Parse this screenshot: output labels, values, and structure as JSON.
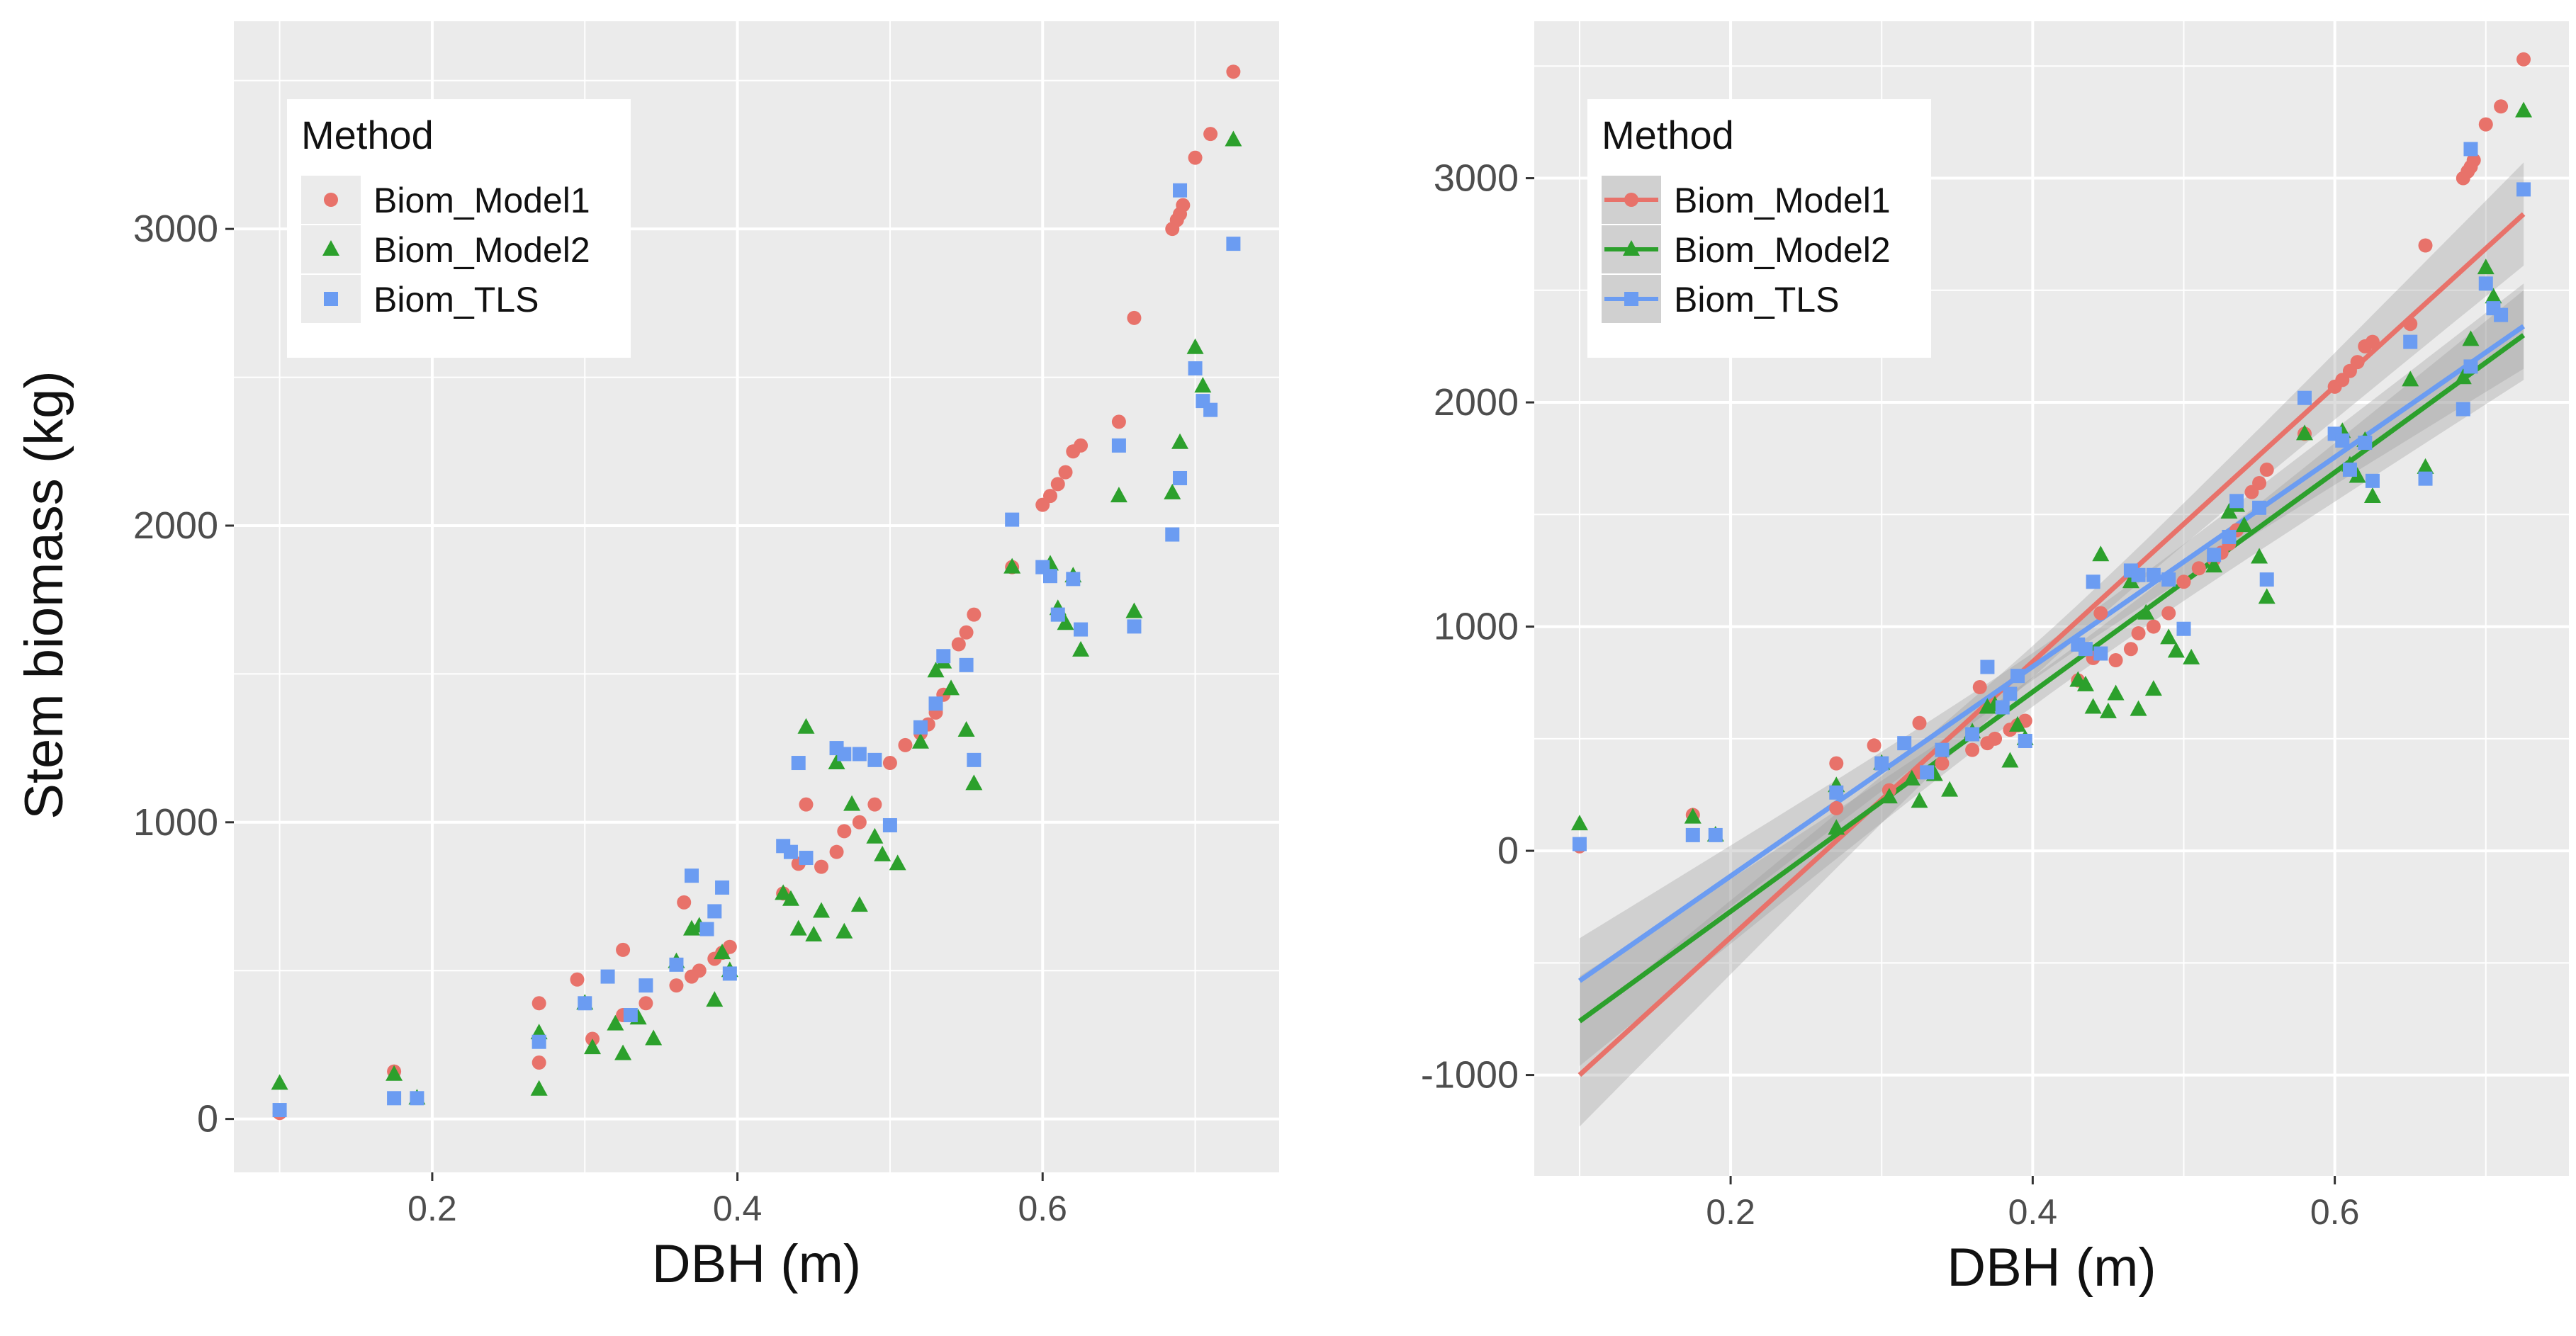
{
  "figure": {
    "ylabel": "Stem biomass (kg)",
    "panels_xlabel": "DBH (m)"
  },
  "colors": {
    "Biom_Model1": "#E8726A",
    "Biom_Model2": "#2CA02C",
    "Biom_TLS": "#6B9CF2",
    "panel_bg": "#EBEBEB",
    "grid": "#FFFFFF",
    "ribbon": "#9E9E9E"
  },
  "chart_data": [
    {
      "type": "scatter",
      "title": "",
      "xlabel": "DBH (m)",
      "ylabel": "Stem biomass (kg)",
      "xlim": [
        0.07,
        0.755
      ],
      "ylim": [
        -180,
        3700
      ],
      "xticks": [
        0.2,
        0.4,
        0.6
      ],
      "xtick_labels": [
        "0.2",
        "0.4",
        "0.6"
      ],
      "yticks": [
        0,
        1000,
        2000,
        3000
      ],
      "ytick_labels": [
        "0",
        "1000",
        "2000",
        "3000"
      ],
      "legend": {
        "title": "Method",
        "position": "top-left",
        "entries": [
          "Biom_Model1",
          "Biom_Model2",
          "Biom_TLS"
        ]
      },
      "series": [
        {
          "name": "Biom_Model1",
          "marker": "circle",
          "x": [
            0.1,
            0.175,
            0.27,
            0.27,
            0.295,
            0.305,
            0.325,
            0.325,
            0.34,
            0.36,
            0.365,
            0.37,
            0.375,
            0.385,
            0.39,
            0.395,
            0.43,
            0.44,
            0.445,
            0.455,
            0.465,
            0.47,
            0.48,
            0.49,
            0.5,
            0.51,
            0.52,
            0.525,
            0.53,
            0.535,
            0.545,
            0.55,
            0.555,
            0.58,
            0.6,
            0.605,
            0.61,
            0.615,
            0.62,
            0.625,
            0.65,
            0.66,
            0.685,
            0.688,
            0.69,
            0.692,
            0.7,
            0.71,
            0.725
          ],
          "y": [
            20,
            160,
            390,
            190,
            470,
            270,
            570,
            350,
            390,
            450,
            730,
            480,
            500,
            540,
            560,
            580,
            760,
            860,
            1060,
            850,
            900,
            970,
            1000,
            1060,
            1200,
            1260,
            1300,
            1330,
            1370,
            1430,
            1600,
            1640,
            1700,
            1860,
            2070,
            2100,
            2140,
            2180,
            2250,
            2270,
            2350,
            2700,
            3000,
            3030,
            3050,
            3080,
            3240,
            3320,
            3530
          ]
        },
        {
          "name": "Biom_Model2",
          "marker": "triangle",
          "x": [
            0.1,
            0.175,
            0.19,
            0.27,
            0.27,
            0.3,
            0.305,
            0.32,
            0.325,
            0.335,
            0.345,
            0.36,
            0.37,
            0.375,
            0.385,
            0.39,
            0.395,
            0.43,
            0.435,
            0.44,
            0.445,
            0.45,
            0.455,
            0.465,
            0.47,
            0.475,
            0.48,
            0.49,
            0.495,
            0.505,
            0.52,
            0.53,
            0.535,
            0.54,
            0.55,
            0.555,
            0.58,
            0.605,
            0.61,
            0.615,
            0.62,
            0.625,
            0.65,
            0.66,
            0.685,
            0.69,
            0.7,
            0.705,
            0.725
          ],
          "y": [
            120,
            150,
            70,
            100,
            290,
            390,
            240,
            320,
            220,
            340,
            270,
            530,
            640,
            650,
            400,
            560,
            500,
            760,
            740,
            640,
            1320,
            620,
            700,
            1200,
            630,
            1060,
            720,
            950,
            890,
            860,
            1270,
            1510,
            1540,
            1450,
            1310,
            1130,
            1860,
            1870,
            1720,
            1670,
            1830,
            1580,
            2100,
            1710,
            2110,
            2280,
            2600,
            2470,
            3300
          ]
        },
        {
          "name": "Biom_TLS",
          "marker": "square",
          "x": [
            0.1,
            0.175,
            0.19,
            0.27,
            0.3,
            0.315,
            0.33,
            0.34,
            0.36,
            0.37,
            0.38,
            0.385,
            0.39,
            0.395,
            0.43,
            0.435,
            0.44,
            0.445,
            0.465,
            0.47,
            0.48,
            0.49,
            0.5,
            0.52,
            0.53,
            0.535,
            0.55,
            0.555,
            0.58,
            0.6,
            0.605,
            0.61,
            0.62,
            0.625,
            0.65,
            0.66,
            0.685,
            0.69,
            0.69,
            0.7,
            0.705,
            0.71,
            0.725
          ],
          "y": [
            30,
            70,
            70,
            260,
            390,
            480,
            350,
            450,
            520,
            820,
            640,
            700,
            780,
            490,
            920,
            900,
            1200,
            880,
            1250,
            1230,
            1230,
            1210,
            990,
            1320,
            1400,
            1560,
            1530,
            1210,
            2020,
            1860,
            1830,
            1700,
            1820,
            1650,
            2270,
            1660,
            1970,
            2160,
            3130,
            2530,
            2420,
            2390,
            2950
          ]
        }
      ]
    },
    {
      "type": "scatter",
      "title": "",
      "xlabel": "DBH (m)",
      "ylabel": "",
      "xlim": [
        0.07,
        0.755
      ],
      "ylim": [
        -1450,
        3700
      ],
      "xticks": [
        0.2,
        0.4,
        0.6
      ],
      "xtick_labels": [
        "0.2",
        "0.4",
        "0.6"
      ],
      "yticks": [
        -1000,
        0,
        1000,
        2000,
        3000
      ],
      "ytick_labels": [
        "-1000",
        "0",
        "1000",
        "2000",
        "3000"
      ],
      "legend": {
        "title": "Method",
        "position": "top-left",
        "entries": [
          "Biom_Model1",
          "Biom_Model2",
          "Biom_TLS"
        ]
      },
      "regression_lines": [
        {
          "name": "Biom_Model1",
          "x": [
            0.1,
            0.725
          ],
          "y": [
            -1000,
            2840
          ],
          "ci_halfwidth_at_ends": 230,
          "ci_halfwidth_at_center": 70
        },
        {
          "name": "Biom_Model2",
          "x": [
            0.1,
            0.725
          ],
          "y": [
            -760,
            2300
          ],
          "ci_halfwidth_at_ends": 200,
          "ci_halfwidth_at_center": 65
        },
        {
          "name": "Biom_TLS",
          "x": [
            0.1,
            0.725
          ],
          "y": [
            -580,
            2340
          ],
          "ci_halfwidth_at_ends": 190,
          "ci_halfwidth_at_center": 60
        }
      ],
      "series_note": "Same data points as panel 1"
    }
  ]
}
